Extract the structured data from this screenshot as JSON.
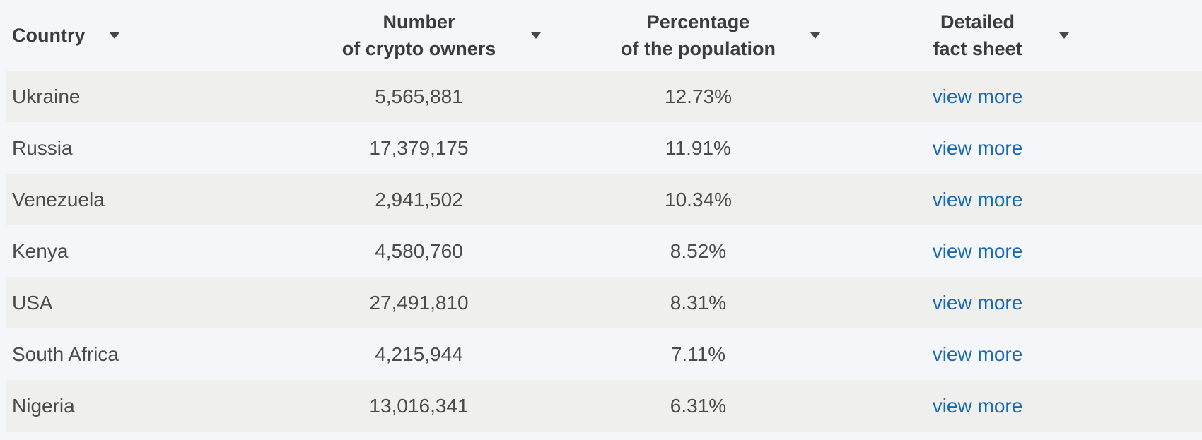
{
  "table": {
    "columns": [
      {
        "label": "Country",
        "lines": [
          "Country"
        ],
        "sort_icon": "chevron-down"
      },
      {
        "label": "Number of crypto owners",
        "lines": [
          "Number",
          "of crypto owners"
        ],
        "sort_icon": "chevron-down"
      },
      {
        "label": "Percentage of the population",
        "lines": [
          "Percentage",
          "of the population"
        ],
        "sort_icon": "chevron-down"
      },
      {
        "label": "Detailed fact sheet",
        "lines": [
          "Detailed",
          "fact sheet"
        ],
        "sort_icon": "chevron-down"
      }
    ],
    "rows": [
      {
        "country": "Ukraine",
        "owners": "5,565,881",
        "percentage": "12.73%",
        "link": "view more"
      },
      {
        "country": "Russia",
        "owners": "17,379,175",
        "percentage": "11.91%",
        "link": "view more"
      },
      {
        "country": "Venezuela",
        "owners": "2,941,502",
        "percentage": "10.34%",
        "link": "view more"
      },
      {
        "country": "Kenya",
        "owners": "4,580,760",
        "percentage": "8.52%",
        "link": "view more"
      },
      {
        "country": "USA",
        "owners": "27,491,810",
        "percentage": "8.31%",
        "link": "view more"
      },
      {
        "country": "South Africa",
        "owners": "4,215,944",
        "percentage": "7.11%",
        "link": "view more"
      },
      {
        "country": "Nigeria",
        "owners": "13,016,341",
        "percentage": "6.31%",
        "link": "view more"
      }
    ]
  },
  "colors": {
    "page_background": "#f5f6fa",
    "striped_row_background": "#efefed",
    "header_text": "#3c3c3c",
    "body_text": "#4b4b4b",
    "link_blue": "#176ab1",
    "sort_arrow": "#474747"
  }
}
